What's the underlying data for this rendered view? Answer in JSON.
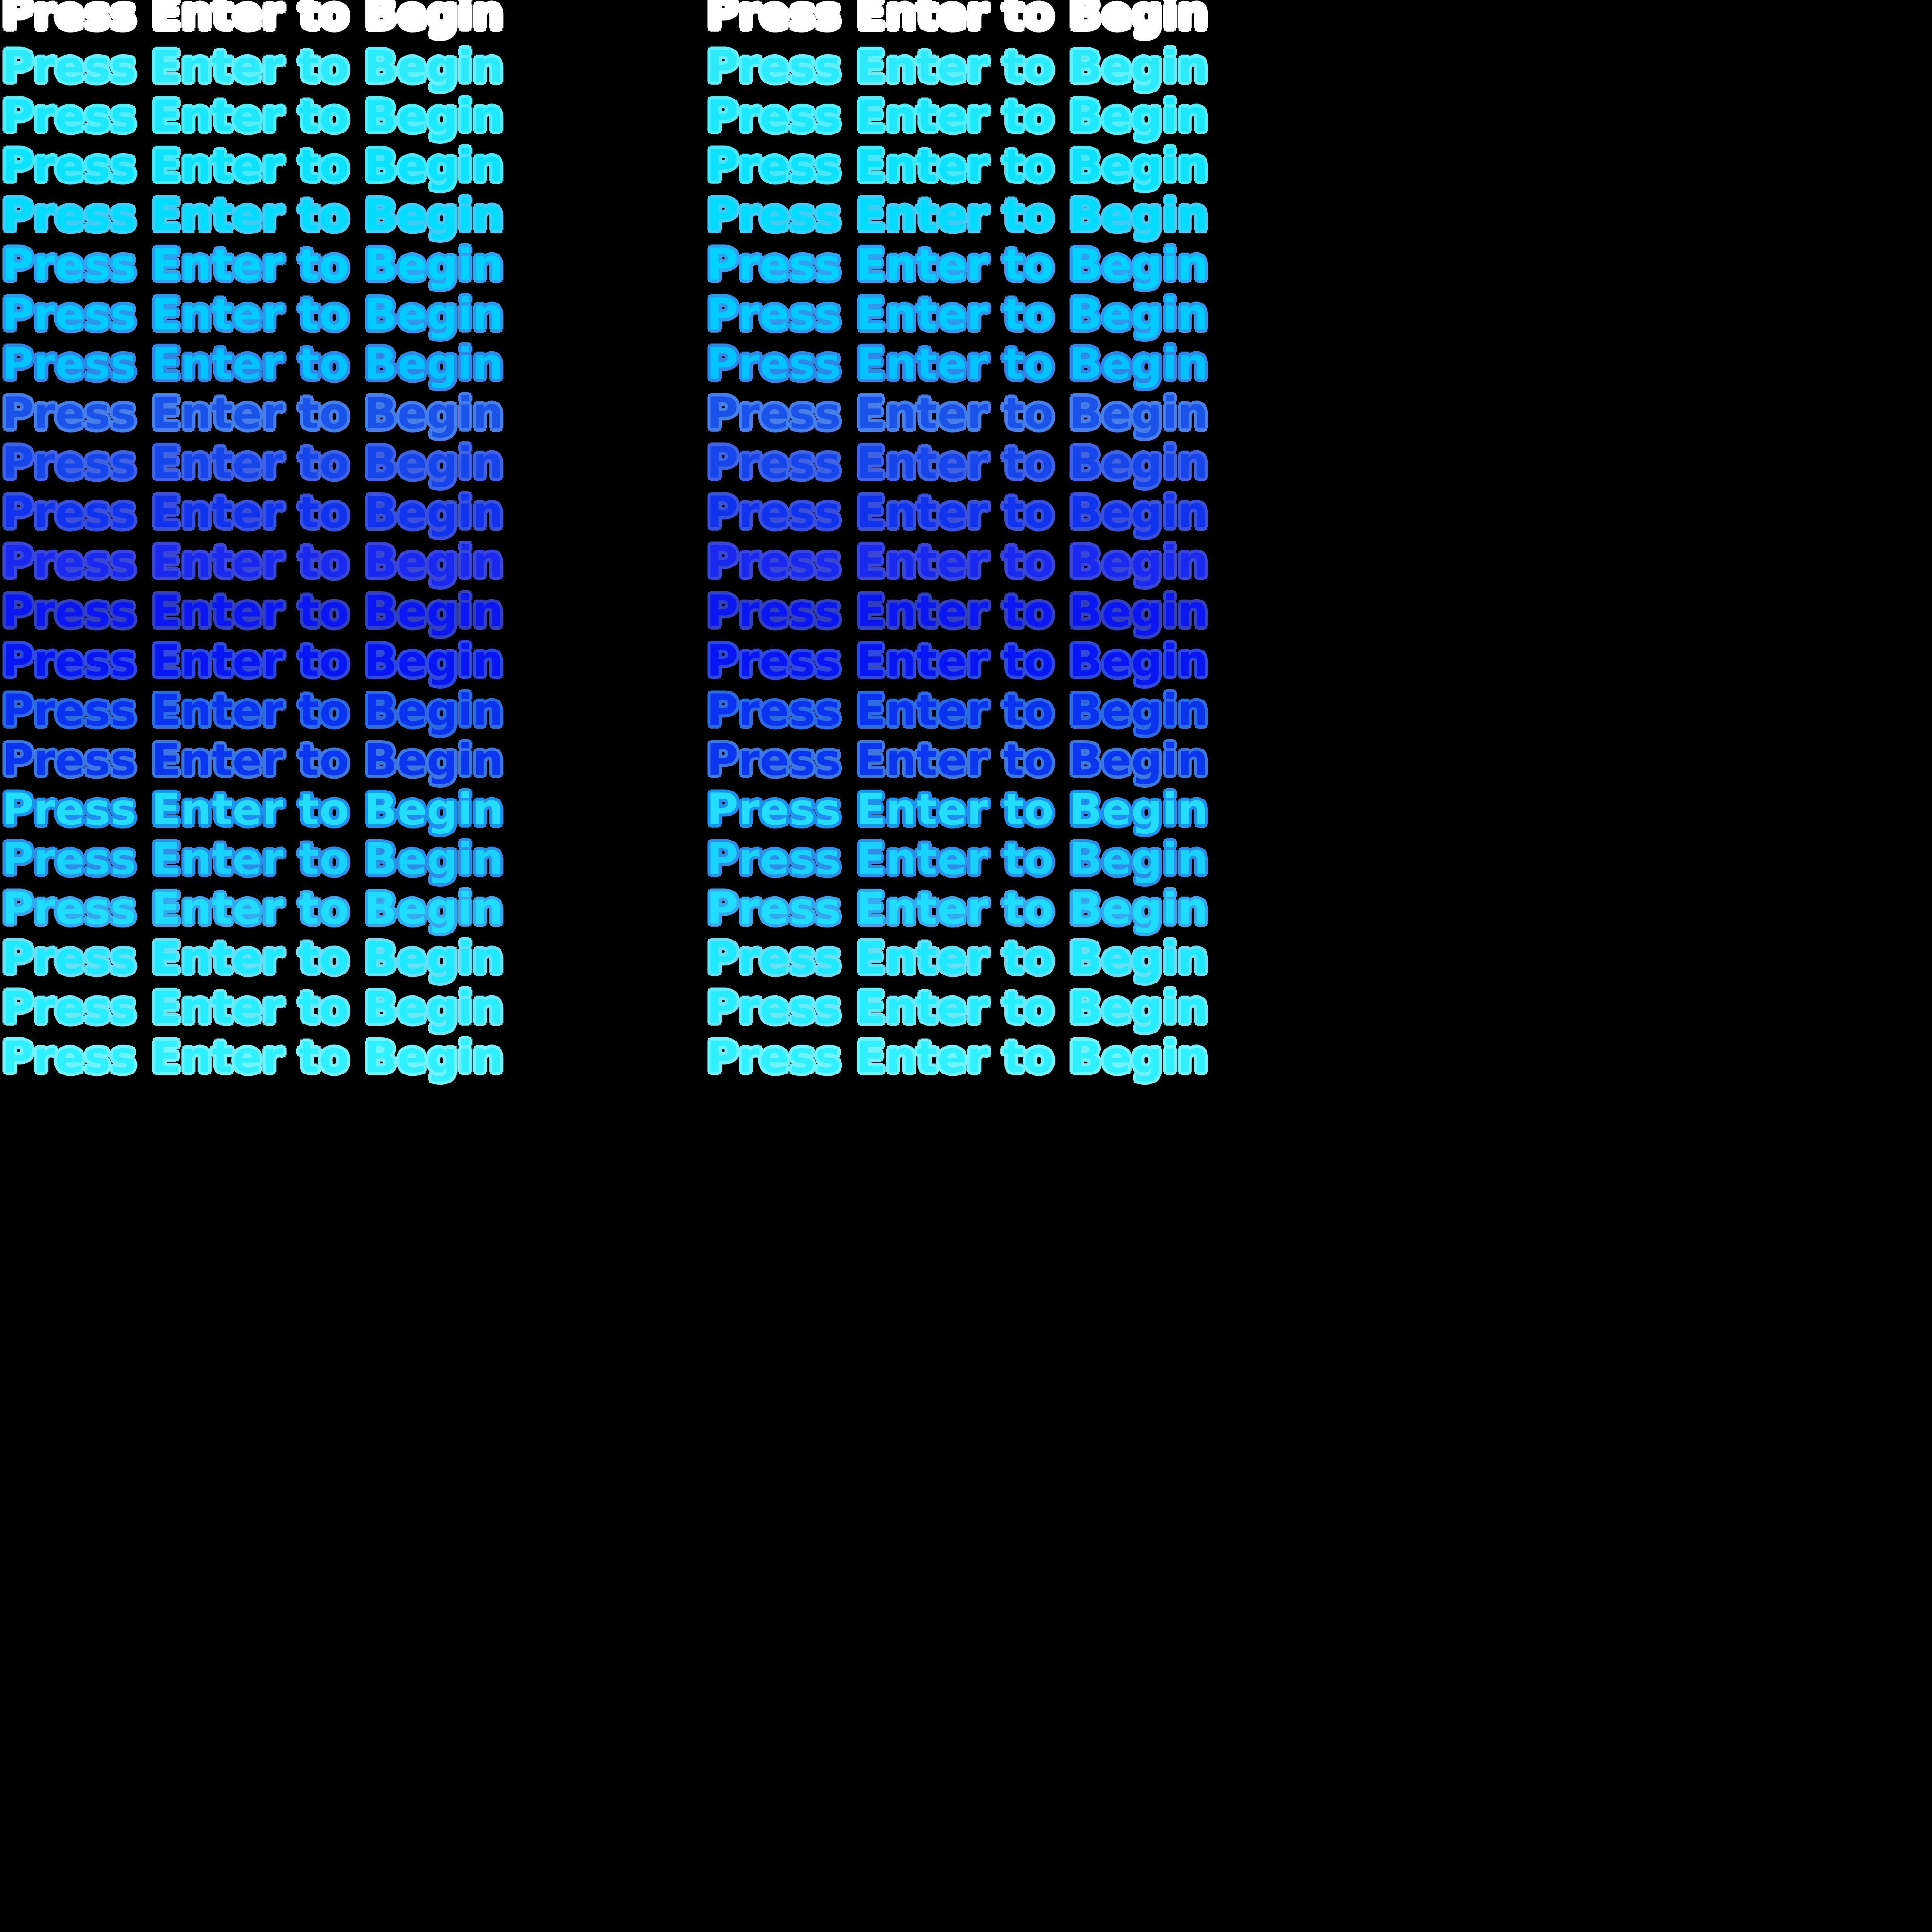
{
  "background_color": "#000000",
  "sprite_sheet": {
    "text": "Press Enter to Begin",
    "columns": 2,
    "rows_per_column": 22,
    "frames": [
      {
        "row": 0,
        "fill": "#FFFFFF",
        "outline": "#FFFFFF"
      },
      {
        "row": 1,
        "fill": "#2BEBFB",
        "outline": "#63F0FC"
      },
      {
        "row": 2,
        "fill": "#1CE8FB",
        "outline": "#55EDFA"
      },
      {
        "row": 3,
        "fill": "#0DE2FC",
        "outline": "#49E7F9"
      },
      {
        "row": 4,
        "fill": "#00DCFD",
        "outline": "#3FCCF6"
      },
      {
        "row": 5,
        "fill": "#00D3FE",
        "outline": "#31A2F3"
      },
      {
        "row": 6,
        "fill": "#00CCFF",
        "outline": "#2E97EE"
      },
      {
        "row": 7,
        "fill": "#00C4FF",
        "outline": "#2F87E7"
      },
      {
        "row": 8,
        "fill": "#1A53E9",
        "outline": "#477EE8"
      },
      {
        "row": 9,
        "fill": "#1545EB",
        "outline": "#3F63E2"
      },
      {
        "row": 10,
        "fill": "#1133EE",
        "outline": "#3950DA"
      },
      {
        "row": 11,
        "fill": "#1B29F0",
        "outline": "#3947D6"
      },
      {
        "row": 12,
        "fill": "#0B16F2",
        "outline": "#3140BC"
      },
      {
        "row": 13,
        "fill": "#0617F4",
        "outline": "#2E49DC"
      },
      {
        "row": 14,
        "fill": "#0A33F0",
        "outline": "#2E6BE0"
      },
      {
        "row": 15,
        "fill": "#0A36F0",
        "outline": "#3D77E0"
      },
      {
        "row": 16,
        "fill": "#22DDFB",
        "outline": "#1E90F0"
      },
      {
        "row": 17,
        "fill": "#16D2FD",
        "outline": "#2D8FE8"
      },
      {
        "row": 18,
        "fill": "#1FDDFE",
        "outline": "#35A8F0"
      },
      {
        "row": 19,
        "fill": "#1FE9FF",
        "outline": "#66E0F6"
      },
      {
        "row": 20,
        "fill": "#26EDFF",
        "outline": "#6BE9F9"
      },
      {
        "row": 21,
        "fill": "#2FF0FF",
        "outline": "#73F2FC"
      }
    ]
  }
}
